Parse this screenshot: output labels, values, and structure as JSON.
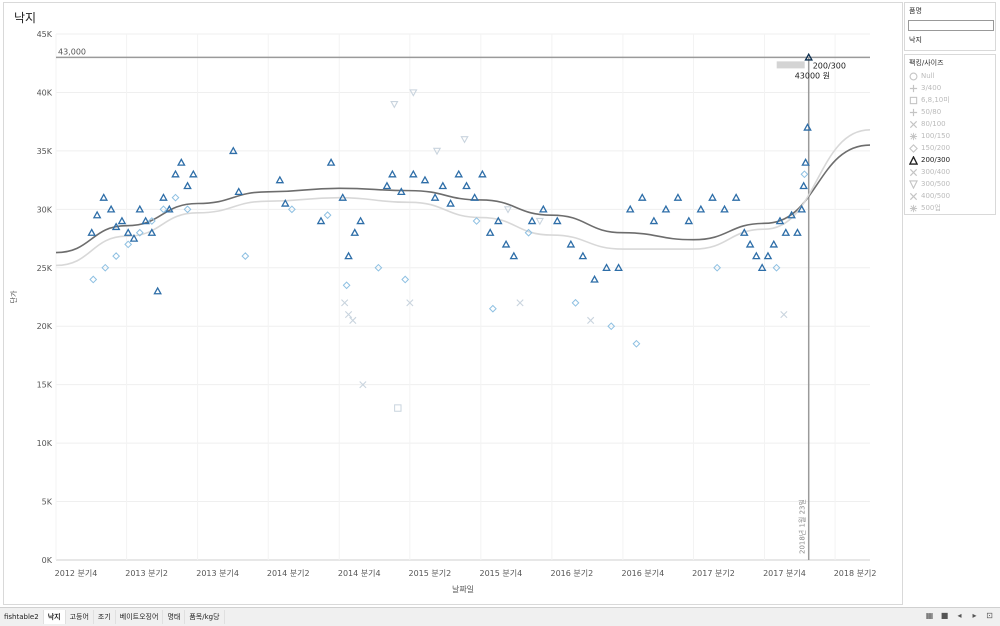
{
  "title": "낙지",
  "colors": {
    "dark": "#0b2d4e",
    "mid": "#2e6ea8",
    "light": "#8ec0e2",
    "faint": "#c9d4de",
    "trend": "#6d6d6d",
    "trend2": "#d8d8d8"
  },
  "chart_data": {
    "type": "scatter",
    "title": "",
    "xlabel": "날짜일",
    "ylabel": "단가",
    "x_ticks": [
      "2012 분기4",
      "2013 분기2",
      "2013 분기4",
      "2014 분기2",
      "2014 분기4",
      "2015 분기2",
      "2015 분기4",
      "2016 분기2",
      "2016 분기4",
      "2017 분기2",
      "2017 분기4",
      "2018 분기2"
    ],
    "y_ticks": [
      "0K",
      "5K",
      "10K",
      "15K",
      "20K",
      "25K",
      "30K",
      "35K",
      "40K",
      "45K"
    ],
    "ylim": [
      0,
      45000
    ],
    "xlim": [
      "2012-10-01",
      "2018-06-30"
    ],
    "reference_line": {
      "value": 43000,
      "label": "43,000"
    },
    "date_line": {
      "date": "2018-01-23",
      "label": "2018년 1월 23일"
    },
    "tooltip": {
      "size": "200/300",
      "price": "43000 원"
    },
    "trend_lines": [
      {
        "points": [
          [
            "2012-10-01",
            26300
          ],
          [
            "2013-04-01",
            28600
          ],
          [
            "2013-10-01",
            30500
          ],
          [
            "2014-04-01",
            31500
          ],
          [
            "2014-10-01",
            31800
          ],
          [
            "2015-04-01",
            31600
          ],
          [
            "2015-10-01",
            30800
          ],
          [
            "2016-04-01",
            29500
          ],
          [
            "2016-10-01",
            28000
          ],
          [
            "2017-04-01",
            27400
          ],
          [
            "2017-10-01",
            28800
          ],
          [
            "2018-06-30",
            35500
          ]
        ]
      },
      {
        "points": [
          [
            "2012-10-01",
            25200
          ],
          [
            "2013-04-01",
            27700
          ],
          [
            "2013-10-01",
            29700
          ],
          [
            "2014-04-01",
            30700
          ],
          [
            "2014-10-01",
            31000
          ],
          [
            "2015-04-01",
            30600
          ],
          [
            "2015-10-01",
            29300
          ],
          [
            "2016-04-01",
            27800
          ],
          [
            "2016-10-01",
            26600
          ],
          [
            "2017-04-01",
            26600
          ],
          [
            "2017-10-01",
            28300
          ],
          [
            "2018-06-30",
            36800
          ]
        ]
      }
    ],
    "series": [
      {
        "name": "200/300",
        "shape": "triangle",
        "color": "#2e6ea8",
        "points": [
          [
            "2013-01-01",
            28000
          ],
          [
            "2013-01-15",
            29500
          ],
          [
            "2013-02-01",
            31000
          ],
          [
            "2013-02-20",
            30000
          ],
          [
            "2013-03-05",
            28500
          ],
          [
            "2013-03-20",
            29000
          ],
          [
            "2013-04-05",
            28000
          ],
          [
            "2013-04-20",
            27500
          ],
          [
            "2013-05-05",
            30000
          ],
          [
            "2013-05-20",
            29000
          ],
          [
            "2013-06-05",
            28000
          ],
          [
            "2013-06-20",
            23000
          ],
          [
            "2013-07-05",
            31000
          ],
          [
            "2013-07-20",
            30000
          ],
          [
            "2013-08-05",
            33000
          ],
          [
            "2013-08-20",
            34000
          ],
          [
            "2013-09-05",
            32000
          ],
          [
            "2013-09-20",
            33000
          ],
          [
            "2014-01-01",
            35000
          ],
          [
            "2014-01-15",
            31500
          ],
          [
            "2014-05-01",
            32500
          ],
          [
            "2014-05-15",
            30500
          ],
          [
            "2014-08-15",
            29000
          ],
          [
            "2014-09-10",
            34000
          ],
          [
            "2014-10-10",
            31000
          ],
          [
            "2014-10-25",
            26000
          ],
          [
            "2014-11-10",
            28000
          ],
          [
            "2014-11-25",
            29000
          ],
          [
            "2015-02-01",
            32000
          ],
          [
            "2015-02-15",
            33000
          ],
          [
            "2015-03-10",
            31500
          ],
          [
            "2015-04-10",
            33000
          ],
          [
            "2015-05-10",
            32500
          ],
          [
            "2015-06-05",
            31000
          ],
          [
            "2015-06-25",
            32000
          ],
          [
            "2015-07-15",
            30500
          ],
          [
            "2015-08-05",
            33000
          ],
          [
            "2015-08-25",
            32000
          ],
          [
            "2015-09-15",
            31000
          ],
          [
            "2015-10-05",
            33000
          ],
          [
            "2015-10-25",
            28000
          ],
          [
            "2015-11-15",
            29000
          ],
          [
            "2015-12-05",
            27000
          ],
          [
            "2015-12-25",
            26000
          ],
          [
            "2016-02-10",
            29000
          ],
          [
            "2016-03-10",
            30000
          ],
          [
            "2016-04-15",
            29000
          ],
          [
            "2016-05-20",
            27000
          ],
          [
            "2016-06-20",
            26000
          ],
          [
            "2016-07-20",
            24000
          ],
          [
            "2016-08-20",
            25000
          ],
          [
            "2016-09-20",
            25000
          ],
          [
            "2016-10-20",
            30000
          ],
          [
            "2016-11-20",
            31000
          ],
          [
            "2016-12-20",
            29000
          ],
          [
            "2017-01-20",
            30000
          ],
          [
            "2017-02-20",
            31000
          ],
          [
            "2017-03-20",
            29000
          ],
          [
            "2017-04-20",
            30000
          ],
          [
            "2017-05-20",
            31000
          ],
          [
            "2017-06-20",
            30000
          ],
          [
            "2017-07-20",
            31000
          ],
          [
            "2017-08-10",
            28000
          ],
          [
            "2017-08-25",
            27000
          ],
          [
            "2017-09-10",
            26000
          ],
          [
            "2017-09-25",
            25000
          ],
          [
            "2017-10-10",
            26000
          ],
          [
            "2017-10-25",
            27000
          ],
          [
            "2017-11-10",
            29000
          ],
          [
            "2017-11-25",
            28000
          ],
          [
            "2017-12-10",
            29500
          ],
          [
            "2017-12-25",
            28000
          ],
          [
            "2018-01-05",
            30000
          ],
          [
            "2018-01-10",
            32000
          ],
          [
            "2018-01-15",
            34000
          ],
          [
            "2018-01-20",
            37000
          ],
          [
            "2018-01-23",
            43000
          ]
        ]
      },
      {
        "name": "150/200",
        "shape": "diamond",
        "color": "#8ec0e2",
        "points": [
          [
            "2013-01-05",
            24000
          ],
          [
            "2013-02-05",
            25000
          ],
          [
            "2013-03-05",
            26000
          ],
          [
            "2013-04-05",
            27000
          ],
          [
            "2013-05-05",
            28000
          ],
          [
            "2013-06-05",
            29000
          ],
          [
            "2013-07-05",
            30000
          ],
          [
            "2013-08-05",
            31000
          ],
          [
            "2013-09-05",
            30000
          ],
          [
            "2014-02-01",
            26000
          ],
          [
            "2014-06-01",
            30000
          ],
          [
            "2014-09-01",
            29500
          ],
          [
            "2014-10-20",
            23500
          ],
          [
            "2015-01-10",
            25000
          ],
          [
            "2015-03-20",
            24000
          ],
          [
            "2015-09-20",
            29000
          ],
          [
            "2015-11-01",
            21500
          ],
          [
            "2016-02-01",
            28000
          ],
          [
            "2016-06-01",
            22000
          ],
          [
            "2016-09-01",
            20000
          ],
          [
            "2016-11-05",
            18500
          ],
          [
            "2017-06-01",
            25000
          ],
          [
            "2017-11-01",
            25000
          ],
          [
            "2018-01-12",
            33000
          ]
        ]
      },
      {
        "name": "300/500",
        "shape": "triangle-down",
        "color": "#c9d4de",
        "points": [
          [
            "2015-02-20",
            39000
          ],
          [
            "2015-04-10",
            40000
          ],
          [
            "2015-06-10",
            35000
          ],
          [
            "2015-08-20",
            36000
          ],
          [
            "2015-12-10",
            30000
          ],
          [
            "2016-03-01",
            29000
          ]
        ]
      },
      {
        "name": "6,8,10미",
        "shape": "square",
        "color": "#c9d4de",
        "points": [
          [
            "2015-03-01",
            13000
          ]
        ]
      },
      {
        "name": "400/500",
        "shape": "x",
        "color": "#c9d4de",
        "points": [
          [
            "2014-10-15",
            22000
          ],
          [
            "2014-10-25",
            21000
          ],
          [
            "2014-11-05",
            20500
          ],
          [
            "2014-12-01",
            15000
          ],
          [
            "2015-04-01",
            22000
          ],
          [
            "2016-01-10",
            22000
          ],
          [
            "2016-07-10",
            20500
          ],
          [
            "2017-11-20",
            21000
          ]
        ]
      }
    ]
  },
  "filter": {
    "title": "품명",
    "value": "낙지",
    "placeholder": ""
  },
  "legend": {
    "title": "팩킹/사이즈",
    "items": [
      {
        "label": "Null",
        "shape": "circle",
        "active": false
      },
      {
        "label": "3/400",
        "shape": "plus",
        "active": false
      },
      {
        "label": "6,8,10미",
        "shape": "square",
        "active": false
      },
      {
        "label": "50/80",
        "shape": "plus",
        "active": false
      },
      {
        "label": "80/100",
        "shape": "x",
        "active": false
      },
      {
        "label": "100/150",
        "shape": "asterisk",
        "active": false
      },
      {
        "label": "150/200",
        "shape": "diamond",
        "active": false
      },
      {
        "label": "200/300",
        "shape": "triangle",
        "active": true
      },
      {
        "label": "300/400",
        "shape": "x",
        "active": false
      },
      {
        "label": "300/500",
        "shape": "triangle-down",
        "active": false
      },
      {
        "label": "400/500",
        "shape": "x",
        "active": false
      },
      {
        "label": "500업",
        "shape": "asterisk",
        "active": false
      }
    ]
  },
  "tabs": [
    {
      "label": "fishtable2",
      "active": false
    },
    {
      "label": "낙지",
      "active": true
    },
    {
      "label": "고등어",
      "active": false
    },
    {
      "label": "조기",
      "active": false
    },
    {
      "label": "베이트오징어",
      "active": false
    },
    {
      "label": "명태",
      "active": false
    },
    {
      "label": "품목/kg당",
      "active": false
    }
  ]
}
